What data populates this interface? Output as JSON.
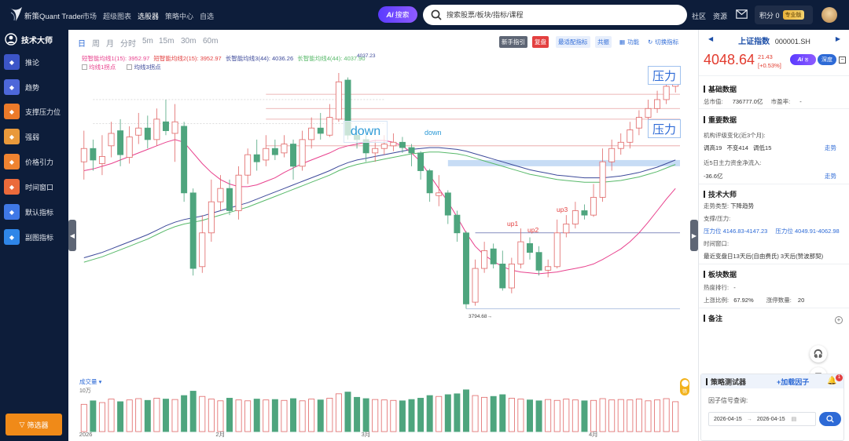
{
  "app": {
    "brand": "新策Quant Trader",
    "nav": [
      "市场",
      "超级图表",
      "选股器",
      "策略中心",
      "自选"
    ],
    "nav_active": "选股器",
    "ai_search": {
      "ai": "Ai",
      "label": "搜索"
    },
    "search_placeholder": "搜索股票/板块/指标/课程",
    "links": [
      "社区",
      "资源"
    ],
    "points_label": "积分 0",
    "pro_badge": "专业版"
  },
  "sidebar": {
    "title": "技术大师",
    "items": [
      {
        "label": "推论",
        "icon": "trend-chart-icon",
        "color": "#3c55c8"
      },
      {
        "label": "趋势",
        "icon": "trend-line-icon",
        "color": "#4d67d9"
      },
      {
        "label": "支撑压力位",
        "icon": "support-resistance-icon",
        "color": "#ec7a2a"
      },
      {
        "label": "强弱",
        "icon": "strength-icon",
        "color": "#e9993b"
      },
      {
        "label": "价格引力",
        "icon": "price-gravity-icon",
        "color": "#ef8331"
      },
      {
        "label": "时间窗口",
        "icon": "time-window-icon",
        "color": "#eb6a3b"
      },
      {
        "label": "默认指标",
        "icon": "default-indicator-icon",
        "color": "#3f78e6"
      },
      {
        "label": "副图指标",
        "icon": "sub-chart-indicator-icon",
        "color": "#2f86e8"
      }
    ],
    "filter_btn": "筛选器"
  },
  "toolbar": {
    "periods": [
      "日",
      "周",
      "月",
      "分时",
      "5m",
      "15m",
      "30m",
      "60m"
    ],
    "active_period": "日",
    "buttons": {
      "newbie": "新手指引",
      "replay": "复盘",
      "fit": "最适配指标",
      "share": "共振",
      "func": "功能",
      "switch": "切换指标"
    }
  },
  "chart_legend": {
    "ma1_label": "短智能均线1(15):",
    "ma1_value": "3952.97",
    "ma2_label": "短智能均线2(15):",
    "ma2_value": "3952.97",
    "ma3_label": "长智能均线3(44):",
    "ma3_value": "4036.26",
    "ma4_label": "长智能均线4(44):",
    "ma4_value": "4037.90",
    "ma4_overlap": "4037.23",
    "line1": "均线1拐点",
    "line3": "均线3拐点"
  },
  "chart_annotations": {
    "pressure1": "压力",
    "pressure2": "压力",
    "down_large": "down",
    "down_small": "down",
    "up1": "up1",
    "up2": "up2",
    "up3": "up3",
    "low_label": "3794.68→"
  },
  "volume": {
    "label": "成交量",
    "unit": "10万",
    "toggle": "筛"
  },
  "chart_data": {
    "type": "candlestick",
    "x_labels": [
      "2026",
      "2月",
      "3月",
      "4月"
    ],
    "candles": [
      {
        "o": 3960,
        "c": 3975,
        "h": 3995,
        "l": 3940
      },
      {
        "o": 3975,
        "c": 3962,
        "h": 3985,
        "l": 3950
      },
      {
        "o": 3958,
        "c": 3966,
        "h": 3990,
        "l": 3945
      },
      {
        "o": 3978,
        "c": 3992,
        "h": 4005,
        "l": 3965
      },
      {
        "o": 3995,
        "c": 3968,
        "h": 4008,
        "l": 3955
      },
      {
        "o": 3965,
        "c": 3988,
        "h": 4000,
        "l": 3958
      },
      {
        "o": 3990,
        "c": 3998,
        "h": 4015,
        "l": 3980
      },
      {
        "o": 3998,
        "c": 3985,
        "h": 4012,
        "l": 3975
      },
      {
        "o": 3985,
        "c": 4008,
        "h": 4020,
        "l": 3978
      },
      {
        "o": 4005,
        "c": 3995,
        "h": 4030,
        "l": 3990
      },
      {
        "o": 3992,
        "c": 4005,
        "h": 4025,
        "l": 3960
      },
      {
        "o": 4000,
        "c": 3925,
        "h": 4005,
        "l": 3915
      },
      {
        "o": 3925,
        "c": 3840,
        "h": 3930,
        "l": 3832
      },
      {
        "o": 3842,
        "c": 3880,
        "h": 3900,
        "l": 3835
      },
      {
        "o": 3880,
        "c": 3915,
        "h": 3940,
        "l": 3870
      },
      {
        "o": 3915,
        "c": 3930,
        "h": 3945,
        "l": 3905
      },
      {
        "o": 3930,
        "c": 3905,
        "h": 3940,
        "l": 3900
      },
      {
        "o": 3905,
        "c": 3945,
        "h": 3955,
        "l": 3895
      },
      {
        "o": 3945,
        "c": 3968,
        "h": 3975,
        "l": 3935
      },
      {
        "o": 3968,
        "c": 3960,
        "h": 3985,
        "l": 3950
      },
      {
        "o": 3962,
        "c": 3975,
        "h": 3990,
        "l": 3955
      },
      {
        "o": 3975,
        "c": 3968,
        "h": 3985,
        "l": 3962
      },
      {
        "o": 3970,
        "c": 3980,
        "h": 3990,
        "l": 3965
      },
      {
        "o": 3980,
        "c": 3955,
        "h": 3985,
        "l": 3940
      },
      {
        "o": 3955,
        "c": 3985,
        "h": 3995,
        "l": 3950
      },
      {
        "o": 3985,
        "c": 3998,
        "h": 4010,
        "l": 3975
      },
      {
        "o": 3998,
        "c": 3992,
        "h": 4015,
        "l": 3985
      },
      {
        "o": 3990,
        "c": 4010,
        "h": 4025,
        "l": 3988
      },
      {
        "o": 4008,
        "c": 4050,
        "h": 4060,
        "l": 4005
      },
      {
        "o": 4052,
        "c": 3990,
        "h": 4055,
        "l": 3985
      },
      {
        "o": 3990,
        "c": 3985,
        "h": 3995,
        "l": 3975
      },
      {
        "o": 3985,
        "c": 3970,
        "h": 3990,
        "l": 3960
      },
      {
        "o": 3970,
        "c": 3975,
        "h": 3985,
        "l": 3960
      },
      {
        "o": 3975,
        "c": 3980,
        "h": 3990,
        "l": 3968
      },
      {
        "o": 3978,
        "c": 3982,
        "h": 3992,
        "l": 3972
      },
      {
        "o": 3982,
        "c": 3976,
        "h": 3988,
        "l": 3970
      },
      {
        "o": 3976,
        "c": 3970,
        "h": 3980,
        "l": 3955
      },
      {
        "o": 3970,
        "c": 3950,
        "h": 3972,
        "l": 3940
      },
      {
        "o": 3950,
        "c": 3925,
        "h": 3952,
        "l": 3915
      },
      {
        "o": 3922,
        "c": 3925,
        "h": 3945,
        "l": 3910
      },
      {
        "o": 3925,
        "c": 3900,
        "h": 3928,
        "l": 3890
      },
      {
        "o": 3900,
        "c": 3880,
        "h": 3905,
        "l": 3870
      },
      {
        "o": 3880,
        "c": 3800,
        "h": 3882,
        "l": 3794.68
      },
      {
        "o": 3802,
        "c": 3840,
        "h": 3850,
        "l": 3798
      },
      {
        "o": 3840,
        "c": 3860,
        "h": 3870,
        "l": 3835
      },
      {
        "o": 3862,
        "c": 3845,
        "h": 3868,
        "l": 3840
      },
      {
        "o": 3845,
        "c": 3818,
        "h": 3860,
        "l": 3815
      },
      {
        "o": 3818,
        "c": 3845,
        "h": 3852,
        "l": 3812
      },
      {
        "o": 3845,
        "c": 3870,
        "h": 3885,
        "l": 3840
      },
      {
        "o": 3868,
        "c": 3858,
        "h": 3875,
        "l": 3850
      },
      {
        "o": 3858,
        "c": 3838,
        "h": 3865,
        "l": 3832
      },
      {
        "o": 3838,
        "c": 3842,
        "h": 3850,
        "l": 3830
      },
      {
        "o": 3842,
        "c": 3880,
        "h": 3895,
        "l": 3840
      },
      {
        "o": 3880,
        "c": 3890,
        "h": 3900,
        "l": 3875
      },
      {
        "o": 3890,
        "c": 3905,
        "h": 3915,
        "l": 3885
      },
      {
        "o": 3905,
        "c": 3900,
        "h": 3912,
        "l": 3895
      },
      {
        "o": 3900,
        "c": 3920,
        "h": 3935,
        "l": 3898
      },
      {
        "o": 3920,
        "c": 3960,
        "h": 3975,
        "l": 3915
      },
      {
        "o": 3960,
        "c": 3975,
        "h": 3985,
        "l": 3950
      },
      {
        "o": 3975,
        "c": 3982,
        "h": 3992,
        "l": 3968
      },
      {
        "o": 3982,
        "c": 3996,
        "h": 4005,
        "l": 3975
      },
      {
        "o": 3998,
        "c": 4010,
        "h": 4018,
        "l": 3990
      },
      {
        "o": 4010,
        "c": 4020,
        "h": 4030,
        "l": 4002
      },
      {
        "o": 4020,
        "c": 4030,
        "h": 4040,
        "l": 4015
      },
      {
        "o": 4030,
        "c": 4045,
        "h": 4052,
        "l": 4025
      },
      {
        "o": 4045,
        "c": 4048.64,
        "h": 4060,
        "l": 4038
      }
    ],
    "volumes": [
      62,
      70,
      66,
      74,
      68,
      72,
      75,
      71,
      76,
      74,
      73,
      82,
      92,
      80,
      74,
      70,
      76,
      72,
      70,
      74,
      72,
      73,
      71,
      75,
      70,
      74,
      72,
      76,
      86,
      90,
      78,
      75,
      73,
      72,
      71,
      70,
      73,
      76,
      82,
      80,
      84,
      86,
      95,
      82,
      78,
      80,
      84,
      76,
      74,
      72,
      70,
      73,
      71,
      74,
      72,
      70,
      71,
      75,
      72,
      73,
      72,
      74,
      70,
      72,
      75,
      68
    ],
    "ma_short": [
      3950,
      3952,
      3955,
      3958,
      3962,
      3966,
      3970,
      3974,
      3978,
      3982,
      3985,
      3982,
      3970,
      3958,
      3948,
      3940,
      3935,
      3932,
      3932,
      3934,
      3938,
      3942,
      3948,
      3953,
      3958,
      3962,
      3966,
      3970,
      3975,
      3978,
      3980,
      3982,
      3984,
      3984,
      3982,
      3978,
      3970,
      3960,
      3945,
      3930,
      3915,
      3898,
      3880,
      3865,
      3855,
      3848,
      3842,
      3838,
      3836,
      3835,
      3834,
      3835,
      3836,
      3838,
      3840,
      3842,
      3845,
      3850,
      3856,
      3862,
      3870,
      3880,
      3892,
      3905,
      3918,
      3930
    ],
    "ma_long": [
      3852,
      3855,
      3858,
      3862,
      3866,
      3870,
      3874,
      3878,
      3883,
      3888,
      3892,
      3895,
      3897,
      3899,
      3902,
      3905,
      3908,
      3911,
      3914,
      3918,
      3922,
      3926,
      3930,
      3934,
      3938,
      3942,
      3946,
      3950,
      3955,
      3959,
      3962,
      3964,
      3966,
      3968,
      3970,
      3972,
      3974,
      3975,
      3976,
      3976,
      3975,
      3974,
      3972,
      3969,
      3966,
      3963,
      3960,
      3957,
      3954,
      3951,
      3949,
      3947,
      3945,
      3944,
      3943,
      3942,
      3942,
      3942,
      3943,
      3944,
      3946,
      3948,
      3951,
      3954,
      3958,
      3962
    ],
    "ma_long2": [
      3847,
      3850,
      3853,
      3857,
      3861,
      3865,
      3869,
      3873,
      3878,
      3883,
      3887,
      3890,
      3892,
      3894,
      3897,
      3900,
      3903,
      3906,
      3909,
      3913,
      3917,
      3921,
      3925,
      3929,
      3933,
      3937,
      3941,
      3945,
      3950,
      3954,
      3957,
      3959,
      3961,
      3963,
      3965,
      3967,
      3969,
      3970,
      3971,
      3971,
      3970,
      3969,
      3967,
      3964,
      3961,
      3958,
      3955,
      3952,
      3949,
      3946,
      3944,
      3942,
      3940,
      3939,
      3938,
      3937,
      3937,
      3937,
      3938,
      3939,
      3941,
      3943,
      3946,
      3949,
      3953,
      3957
    ],
    "pressure_lines": [
      4036,
      4020,
      4008,
      3978
    ],
    "support_line": 3880,
    "low_line": 3794.68,
    "zone": [
      3962,
      3955
    ],
    "ylim": [
      3780,
      4075
    ],
    "colors": {
      "up": "#e06666",
      "down": "#4ea57e",
      "ma_short": "#e8418d",
      "ma_long": "#3d4a9a",
      "ma_long2": "#58b96a"
    }
  },
  "right_panel": {
    "index_name": "上证指数",
    "index_code": "000001.SH",
    "price": "4048.64",
    "change": "21.43",
    "change_pct": "[+0.53%]",
    "ai_tag": "Ai",
    "ai_sub": "答",
    "depth_btn": "深度",
    "basic_title": "基础数据",
    "market_cap_label": "总市值:",
    "market_cap": "736777.0亿",
    "pe_label": "市盈率:",
    "pe": "-",
    "important_title": "重要数据",
    "rating_label": "机构评级变化(近3个月):",
    "rating_up": "调高19",
    "rating_same": "不变414",
    "rating_down": "调低15",
    "trend_link": "走势",
    "flow_label": "近5日主力资金净流入:",
    "flow_value": "-36.6亿",
    "flow_link": "走势",
    "tech_title": "技术大师",
    "trend_type_label": "走势类型:",
    "trend_type": "下降趋势",
    "sr_label": "支撑/压力:",
    "sr_1": "压力位 4146.83-4147.23",
    "sr_2": "压力位 4049.91-4062.98",
    "tw_label": "时间窗口:",
    "tw_value": "最近变盘日13天后(自由费氏)  3天后(赞波那契)",
    "sector_title": "板块数据",
    "heat_label": "热度排行:",
    "heat_value": "-",
    "up_ratio_label": "上涨比例:",
    "up_ratio": "67.92%",
    "fall_label": "涨停数量:",
    "fall_value": "20",
    "note_title": "备注"
  },
  "strategy": {
    "title": "策略测试器",
    "add": "+加载因子",
    "query_label": "因子信号查询:",
    "date_from": "2026-04-15",
    "date_to": "2026-04-15",
    "sep": "→",
    "badge": "1"
  }
}
